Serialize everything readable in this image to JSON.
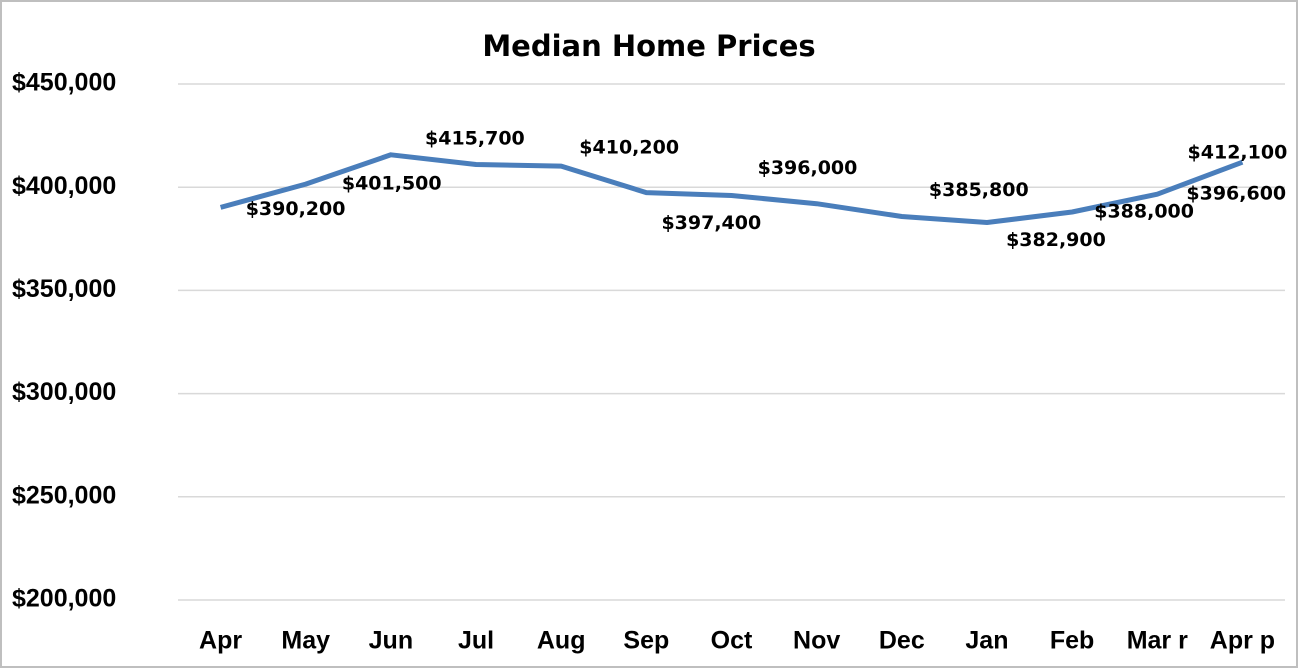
{
  "chart_data": {
    "type": "line",
    "title": "Median Home Prices",
    "categories": [
      "Apr",
      "May",
      "Jun",
      "Jul",
      "Aug",
      "Sep",
      "Oct",
      "Nov",
      "Dec",
      "Jan",
      "Feb",
      "Mar r",
      "Apr p"
    ],
    "series": [
      {
        "name": "Median Home Price",
        "color": "#4a7ebb",
        "values": [
          390200,
          401500,
          415700,
          411000,
          410200,
          397400,
          396000,
          392000,
          385800,
          382900,
          388000,
          396600,
          412100
        ],
        "value_labels": [
          "$390,200",
          "$401,500",
          "$415,700",
          null,
          "$410,200",
          "$397,400",
          "$396,000",
          null,
          "$385,800",
          "$382,900",
          "$388,000",
          "$396,600",
          "$412,100"
        ]
      }
    ],
    "ylim": [
      200000,
      450000
    ],
    "yticks": [
      {
        "value": 200000,
        "label": "$200,000"
      },
      {
        "value": 250000,
        "label": "$250,000"
      },
      {
        "value": 300000,
        "label": "$300,000"
      },
      {
        "value": 350000,
        "label": "$350,000"
      },
      {
        "value": 400000,
        "label": "$400,000"
      },
      {
        "value": 450000,
        "label": "$450,000"
      }
    ],
    "grid": true
  }
}
